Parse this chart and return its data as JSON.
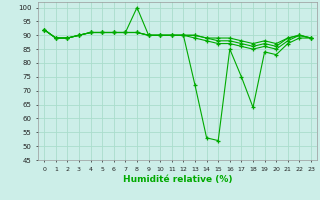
{
  "xlabel": "Humidité relative (%)",
  "xlim": [
    -0.5,
    23.5
  ],
  "ylim": [
    45,
    102
  ],
  "yticks": [
    45,
    50,
    55,
    60,
    65,
    70,
    75,
    80,
    85,
    90,
    95,
    100
  ],
  "xticks": [
    0,
    1,
    2,
    3,
    4,
    5,
    6,
    7,
    8,
    9,
    10,
    11,
    12,
    13,
    14,
    15,
    16,
    17,
    18,
    19,
    20,
    21,
    22,
    23
  ],
  "bg_color": "#cceee8",
  "grid_color": "#aaddcc",
  "line_color": "#00aa00",
  "marker": "+",
  "series": [
    [
      92,
      89,
      89,
      90,
      91,
      91,
      91,
      91,
      100,
      90,
      90,
      90,
      90,
      72,
      53,
      52,
      85,
      75,
      64,
      84,
      83,
      87,
      89,
      89
    ],
    [
      92,
      89,
      89,
      90,
      91,
      91,
      91,
      91,
      91,
      90,
      90,
      90,
      90,
      89,
      88,
      87,
      87,
      86,
      85,
      86,
      85,
      88,
      90,
      89
    ],
    [
      92,
      89,
      89,
      90,
      91,
      91,
      91,
      91,
      91,
      90,
      90,
      90,
      90,
      90,
      89,
      88,
      88,
      87,
      86,
      87,
      86,
      89,
      90,
      89
    ],
    [
      92,
      89,
      89,
      90,
      91,
      91,
      91,
      91,
      91,
      90,
      90,
      90,
      90,
      90,
      89,
      89,
      89,
      88,
      87,
      88,
      87,
      89,
      90,
      89
    ]
  ]
}
